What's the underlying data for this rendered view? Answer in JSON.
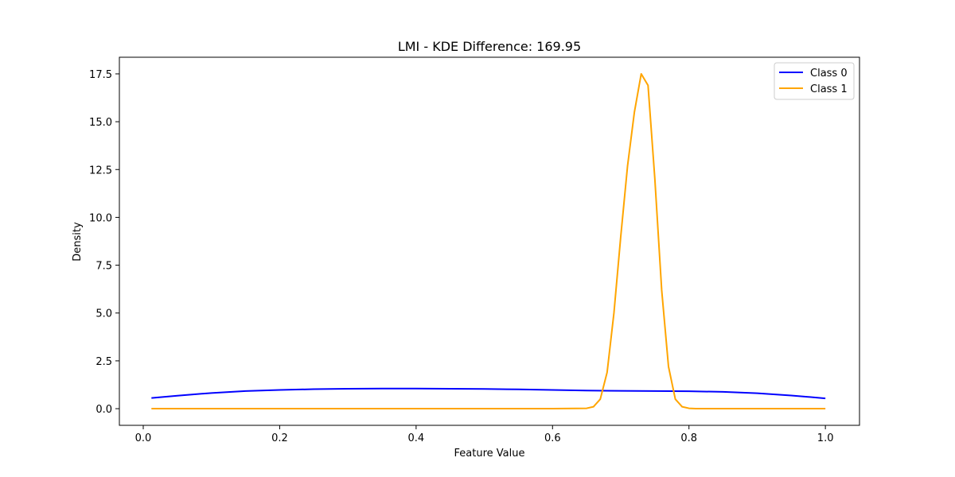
{
  "chart_data": {
    "type": "line",
    "title": "LMI - KDE Difference: 169.95",
    "xlabel": "Feature Value",
    "ylabel": "Density",
    "xlim": [
      -0.035,
      1.05
    ],
    "ylim": [
      -0.87,
      18.37
    ],
    "xticks": [
      0.0,
      0.2,
      0.4,
      0.6,
      0.8,
      1.0
    ],
    "xtick_labels": [
      "0.0",
      "0.2",
      "0.4",
      "0.6",
      "0.8",
      "1.0"
    ],
    "yticks": [
      0.0,
      2.5,
      5.0,
      7.5,
      10.0,
      12.5,
      15.0,
      17.5
    ],
    "ytick_labels": [
      "0.0",
      "2.5",
      "5.0",
      "7.5",
      "10.0",
      "12.5",
      "15.0",
      "17.5"
    ],
    "grid": false,
    "legend_position": "top-right",
    "series": [
      {
        "name": "Class 0",
        "color": "#0000ff",
        "x": [
          0.012,
          0.05,
          0.1,
          0.15,
          0.2,
          0.25,
          0.3,
          0.35,
          0.4,
          0.45,
          0.5,
          0.55,
          0.6,
          0.65,
          0.7,
          0.75,
          0.8,
          0.85,
          0.9,
          0.95,
          1.0
        ],
        "y": [
          0.56,
          0.68,
          0.82,
          0.92,
          0.98,
          1.02,
          1.04,
          1.05,
          1.05,
          1.04,
          1.03,
          1.01,
          0.98,
          0.95,
          0.93,
          0.92,
          0.91,
          0.88,
          0.81,
          0.69,
          0.54
        ]
      },
      {
        "name": "Class 1",
        "color": "#ffa500",
        "x": [
          0.012,
          0.1,
          0.2,
          0.3,
          0.4,
          0.5,
          0.6,
          0.65,
          0.66,
          0.67,
          0.68,
          0.69,
          0.7,
          0.71,
          0.72,
          0.73,
          0.74,
          0.75,
          0.76,
          0.77,
          0.78,
          0.79,
          0.8,
          0.81,
          0.9,
          1.0
        ],
        "y": [
          0.0,
          0.0,
          0.0,
          0.0,
          0.0,
          0.0,
          0.0,
          0.02,
          0.1,
          0.5,
          1.9,
          5.0,
          9.0,
          12.7,
          15.5,
          17.5,
          16.9,
          12.0,
          6.2,
          2.2,
          0.5,
          0.1,
          0.02,
          0.0,
          0.0,
          0.0
        ]
      }
    ]
  }
}
